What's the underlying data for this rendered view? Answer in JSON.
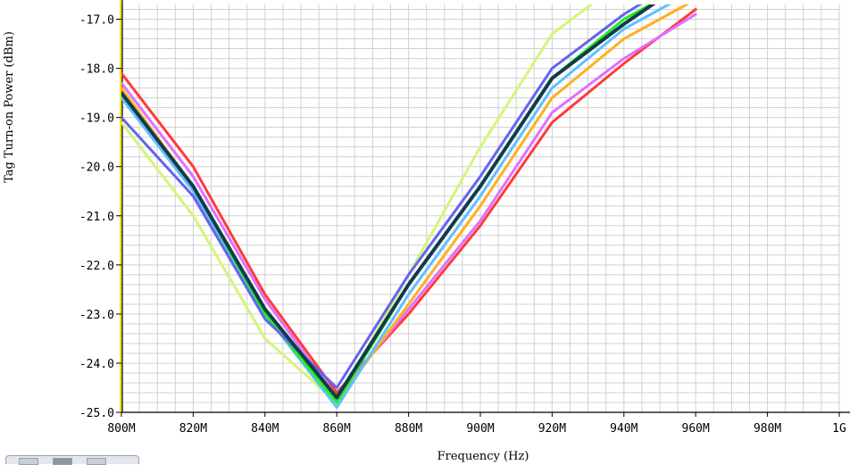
{
  "chart_data": {
    "type": "line",
    "title": "",
    "xlabel": "Frequency (Hz)",
    "ylabel": "Tag Turn-on Power (dBm)",
    "x": [
      800,
      820,
      840,
      860,
      880,
      900,
      920,
      940,
      960
    ],
    "xlim": [
      800,
      1000
    ],
    "ylim": [
      -25.0,
      -16.7
    ],
    "x_ticks": [
      800,
      820,
      840,
      860,
      880,
      900,
      920,
      940,
      960,
      980,
      1000
    ],
    "x_tick_labels": [
      "800M",
      "820M",
      "840M",
      "860M",
      "880M",
      "900M",
      "920M",
      "940M",
      "960M",
      "980M",
      "1G"
    ],
    "y_ticks": [
      -25,
      -24,
      -23,
      -22,
      -21,
      -20,
      -19,
      -18,
      -17
    ],
    "y_tick_labels": [
      "-25.0",
      "-24.0",
      "-23.0",
      "-22.0",
      "-21.0",
      "-20.0",
      "-19.0",
      "-18.0",
      "-17.0"
    ],
    "grid": true,
    "series": [
      {
        "color": "#d4f57a",
        "values": [
          -19.1,
          -21.0,
          -23.5,
          -24.8,
          -22.2,
          -19.6,
          -17.3,
          -16.2,
          null
        ]
      },
      {
        "color": "#ff3a3a",
        "values": [
          -18.1,
          -20.0,
          -22.6,
          -24.6,
          -23.0,
          -21.2,
          -19.1,
          -17.9,
          -16.8
        ]
      },
      {
        "color": "#e070ff",
        "values": [
          -18.3,
          -20.2,
          -22.7,
          -24.7,
          -22.9,
          -21.1,
          -18.9,
          -17.8,
          -16.9
        ]
      },
      {
        "color": "#ffb020",
        "values": [
          -18.4,
          -20.4,
          -22.9,
          -24.8,
          -22.8,
          -20.8,
          -18.6,
          -17.4,
          -16.6
        ]
      },
      {
        "color": "#60c0ff",
        "values": [
          -18.6,
          -20.5,
          -23.0,
          -24.9,
          -22.6,
          -20.6,
          -18.4,
          -17.2,
          -16.4
        ]
      },
      {
        "color": "#20ee20",
        "values": [
          -18.5,
          -20.4,
          -23.0,
          -24.8,
          -22.4,
          -20.4,
          -18.2,
          -17.0,
          -16.2
        ]
      },
      {
        "color": "#6464f0",
        "values": [
          -19.0,
          -20.6,
          -23.1,
          -24.5,
          -22.2,
          -20.2,
          -18.0,
          -16.9,
          -16.0
        ]
      },
      {
        "color": "#103c4c",
        "values": [
          -18.5,
          -20.4,
          -22.9,
          -24.7,
          -22.4,
          -20.4,
          -18.2,
          -17.1,
          -16.1
        ]
      }
    ]
  },
  "ui": {
    "axis_color": "#000000",
    "left_axis_accent": "#ffe000",
    "grid_color": "#d0d0d0",
    "plot_background": "#ffffff"
  }
}
